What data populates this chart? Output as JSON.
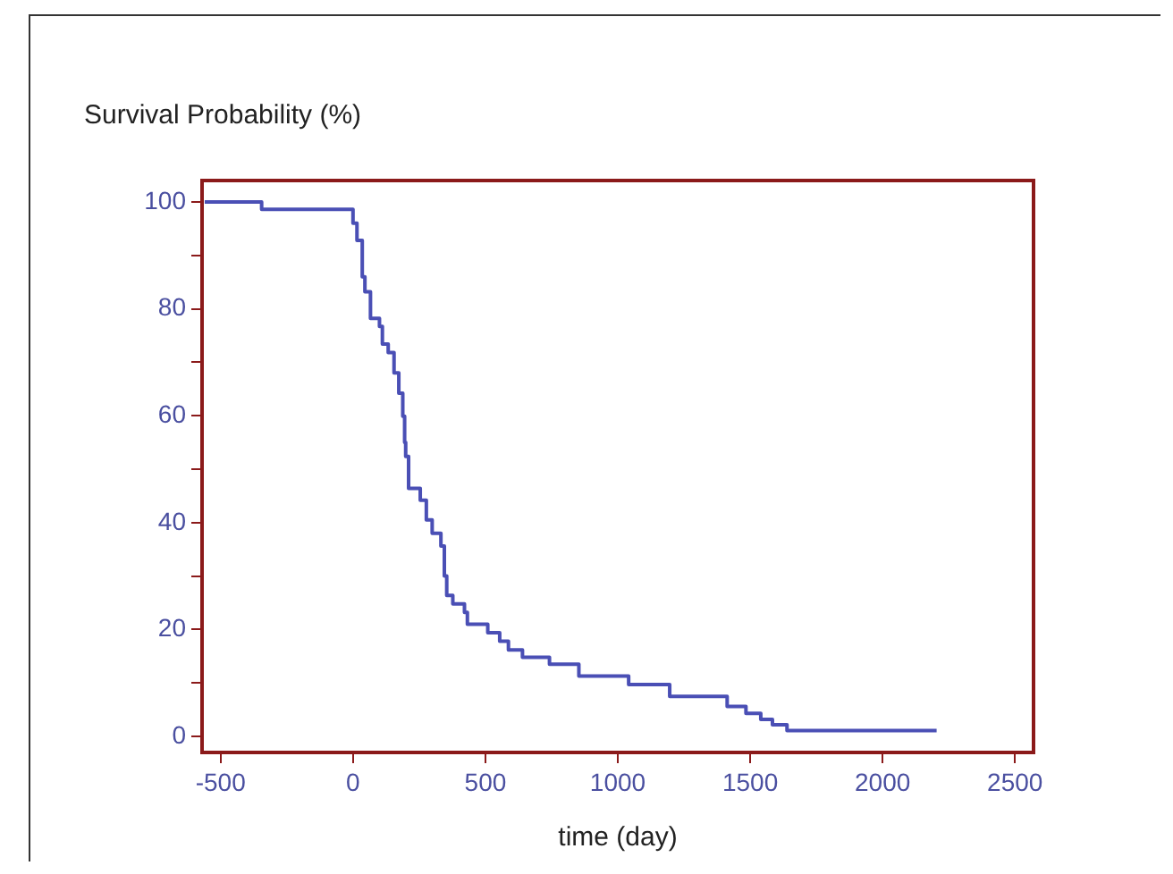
{
  "chart_data": {
    "type": "step",
    "ylabel": "Survival Probability (%)",
    "xlabel": "time (day)",
    "x": [
      -560,
      -345,
      0,
      15,
      35,
      45,
      66,
      100,
      111,
      133,
      155,
      173,
      188,
      195,
      199,
      210,
      254,
      277,
      299,
      332,
      345,
      354,
      377,
      421,
      432,
      509,
      554,
      587,
      640,
      742,
      853,
      1041,
      1196,
      1413,
      1484,
      1540,
      1584,
      1639,
      2204
    ],
    "series": [
      {
        "color": "#4a4fb5",
        "values": [
          100,
          98.6,
          96,
          92.8,
          86,
          83.2,
          78.2,
          76.7,
          73.4,
          71.8,
          68,
          64.2,
          59.9,
          55,
          52.4,
          46.4,
          44.2,
          40.5,
          38,
          35.6,
          30,
          26.4,
          24.8,
          23.2,
          21,
          19.4,
          17.8,
          16.2,
          14.8,
          13.5,
          11.3,
          9.7,
          7.5,
          5.6,
          4.3,
          3.2,
          2.2,
          1.1,
          1.1
        ]
      }
    ],
    "xlim": [
      -570,
      2570
    ],
    "xticks": [
      -500,
      0,
      500,
      1000,
      1500,
      2000,
      2500
    ],
    "ylim": [
      -3,
      104
    ],
    "yticks": [
      0,
      {
        "value": 10,
        "label": null
      },
      20,
      {
        "value": 30,
        "label": null
      },
      40,
      {
        "value": 50,
        "label": null
      },
      60,
      {
        "value": 70,
        "label": null
      },
      80,
      {
        "value": 90,
        "label": null
      },
      100
    ],
    "grid": false,
    "legend": false,
    "marker": "none",
    "line_style": "solid"
  }
}
